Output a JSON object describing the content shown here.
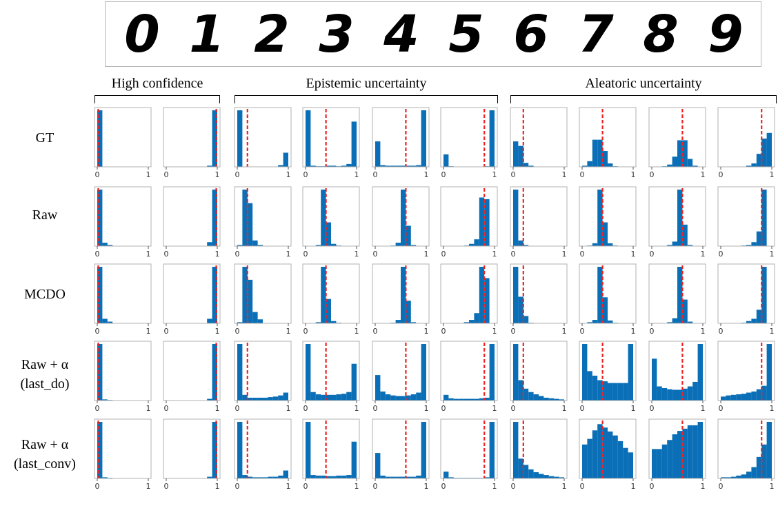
{
  "digits": [
    "0",
    "1",
    "2",
    "3",
    "4",
    "5",
    "6",
    "7",
    "8",
    "9"
  ],
  "groups": [
    {
      "label": "High confidence",
      "start_col": 0,
      "end_col": 1
    },
    {
      "label": "Epistemic uncertainty",
      "start_col": 2,
      "end_col": 5
    },
    {
      "label": "Aleatoric uncertainty",
      "start_col": 6,
      "end_col": 9
    }
  ],
  "rows": [
    {
      "label": "GT"
    },
    {
      "label": "Raw"
    },
    {
      "label": "MCDO"
    },
    {
      "label": "Raw + α",
      "sublabel": "(last_do)"
    },
    {
      "label": "Raw + α",
      "sublabel": "(last_conv)"
    }
  ],
  "colors": {
    "bar": "#0a6fb6",
    "marker": "#ee2222",
    "frame": "#b0b0b0"
  },
  "chart_data": {
    "type": "bar",
    "description_note": "",
    "x_range": [
      0,
      1
    ],
    "x_tick_labels": [
      "0",
      "1"
    ],
    "bins": 10,
    "mean_markers": [
      0.02,
      0.98,
      0.2,
      0.4,
      0.6,
      0.8,
      0.2,
      0.4,
      0.6,
      0.8
    ],
    "histograms": [
      [
        [
          1,
          0.005,
          0,
          0,
          0,
          0,
          0,
          0,
          0,
          0
        ],
        [
          0,
          0,
          0,
          0,
          0,
          0,
          0,
          0,
          0.02,
          1
        ],
        [
          1,
          0,
          0,
          0,
          0,
          0,
          0,
          0,
          0.03,
          0.25
        ],
        [
          1,
          0.02,
          0.01,
          0.01,
          0.02,
          0.02,
          0.01,
          0.02,
          0.05,
          0.8
        ],
        [
          0.45,
          0.03,
          0.02,
          0.02,
          0.02,
          0.02,
          0.02,
          0.02,
          0.03,
          1
        ],
        [
          0.22,
          0.01,
          0,
          0,
          0,
          0,
          0,
          0,
          0.01,
          1
        ],
        [
          0.45,
          0.37,
          0.07,
          0.02,
          0,
          0,
          0,
          0,
          0,
          0
        ],
        [
          0.02,
          0.1,
          0.48,
          0.48,
          0.28,
          0.06,
          0.01,
          0,
          0,
          0
        ],
        [
          0,
          0,
          0.01,
          0.04,
          0.18,
          0.47,
          0.47,
          0.14,
          0.02,
          0
        ],
        [
          0,
          0,
          0,
          0,
          0,
          0.02,
          0.06,
          0.23,
          0.5,
          0.6
        ]
      ],
      [
        [
          1,
          0.06,
          0.02,
          0,
          0,
          0,
          0,
          0,
          0,
          0
        ],
        [
          0,
          0,
          0,
          0,
          0,
          0,
          0,
          0,
          0.07,
          1
        ],
        [
          0.02,
          1,
          0.76,
          0.1,
          0.02,
          0,
          0,
          0,
          0,
          0
        ],
        [
          0,
          0,
          0.02,
          1,
          0.42,
          0.04,
          0.01,
          0,
          0,
          0
        ],
        [
          0,
          0,
          0,
          0.01,
          0.06,
          1,
          0.36,
          0.02,
          0,
          0
        ],
        [
          0,
          0,
          0,
          0,
          0.01,
          0.04,
          0.12,
          0.86,
          0.83,
          0
        ],
        [
          1,
          0.1,
          0.02,
          0,
          0,
          0,
          0,
          0,
          0,
          0
        ],
        [
          0,
          0.01,
          0.05,
          1,
          0.42,
          0.05,
          0.01,
          0,
          0,
          0
        ],
        [
          0,
          0,
          0,
          0.02,
          0.08,
          1,
          0.38,
          0.02,
          0,
          0
        ],
        [
          0,
          0,
          0,
          0,
          0.01,
          0.02,
          0.07,
          0.26,
          1,
          0
        ]
      ],
      [
        [
          1,
          0.08,
          0.03,
          0,
          0,
          0,
          0,
          0,
          0,
          0
        ],
        [
          0,
          0,
          0,
          0,
          0,
          0,
          0,
          0,
          0.08,
          1
        ],
        [
          0.02,
          1,
          0.77,
          0.2,
          0.07,
          0,
          0,
          0,
          0,
          0
        ],
        [
          0,
          0,
          0.02,
          1,
          0.43,
          0.04,
          0.01,
          0,
          0,
          0
        ],
        [
          0,
          0,
          0,
          0.01,
          0.06,
          1,
          0.4,
          0.02,
          0,
          0
        ],
        [
          0,
          0,
          0,
          0,
          0.02,
          0.06,
          0.18,
          1,
          0.8,
          0
        ],
        [
          1,
          0.47,
          0.13,
          0.01,
          0,
          0,
          0,
          0,
          0,
          0
        ],
        [
          0,
          0.02,
          0.06,
          1,
          0.46,
          0.05,
          0.01,
          0,
          0,
          0
        ],
        [
          0,
          0,
          0,
          0.02,
          0.09,
          1,
          0.42,
          0.03,
          0,
          0
        ],
        [
          0,
          0,
          0,
          0,
          0.01,
          0.04,
          0.08,
          0.24,
          1,
          0
        ]
      ],
      [
        [
          1,
          0.02,
          0.01,
          0,
          0,
          0,
          0,
          0,
          0,
          0
        ],
        [
          0,
          0,
          0,
          0,
          0,
          0,
          0,
          0,
          0.03,
          1
        ],
        [
          1,
          0.1,
          0.05,
          0.05,
          0.05,
          0.05,
          0.06,
          0.07,
          0.09,
          0.14
        ],
        [
          1,
          0.15,
          0.11,
          0.1,
          0.1,
          0.1,
          0.11,
          0.12,
          0.15,
          0.65
        ],
        [
          0.45,
          0.16,
          0.11,
          0.09,
          0.08,
          0.08,
          0.09,
          0.11,
          0.14,
          1
        ],
        [
          0.1,
          0.04,
          0.03,
          0.03,
          0.03,
          0.03,
          0.03,
          0.04,
          0.05,
          1
        ],
        [
          1,
          0.36,
          0.21,
          0.15,
          0.11,
          0.08,
          0.05,
          0.04,
          0.03,
          0.02
        ],
        [
          1,
          0.52,
          0.44,
          0.36,
          0.34,
          0.31,
          0.31,
          0.31,
          0.31,
          1
        ],
        [
          0.74,
          0.25,
          0.22,
          0.2,
          0.19,
          0.19,
          0.21,
          0.25,
          0.33,
          1
        ],
        [
          0.07,
          0.09,
          0.1,
          0.11,
          0.12,
          0.14,
          0.16,
          0.2,
          0.26,
          1
        ]
      ],
      [
        [
          1,
          0.02,
          0.01,
          0,
          0,
          0,
          0,
          0,
          0,
          0
        ],
        [
          0,
          0,
          0,
          0,
          0,
          0,
          0,
          0,
          0.03,
          1
        ],
        [
          1,
          0.06,
          0.03,
          0.02,
          0.02,
          0.02,
          0.03,
          0.03,
          0.05,
          0.14
        ],
        [
          1,
          0.06,
          0.05,
          0.05,
          0.04,
          0.04,
          0.05,
          0.05,
          0.06,
          0.65
        ],
        [
          0.45,
          0.05,
          0.03,
          0.03,
          0.03,
          0.03,
          0.03,
          0.03,
          0.05,
          1
        ],
        [
          0.12,
          0.02,
          0.01,
          0.01,
          0.01,
          0.01,
          0.01,
          0.01,
          0.02,
          1
        ],
        [
          1,
          0.35,
          0.24,
          0.16,
          0.11,
          0.08,
          0.06,
          0.04,
          0.03,
          0.02
        ],
        [
          0.6,
          0.7,
          0.85,
          0.96,
          0.9,
          0.83,
          0.76,
          0.66,
          0.54,
          0.46
        ],
        [
          0.52,
          0.52,
          0.6,
          0.68,
          0.78,
          0.84,
          0.88,
          0.94,
          0.94,
          1
        ],
        [
          0.02,
          0.02,
          0.03,
          0.05,
          0.07,
          0.12,
          0.2,
          0.38,
          0.6,
          1
        ]
      ]
    ]
  }
}
